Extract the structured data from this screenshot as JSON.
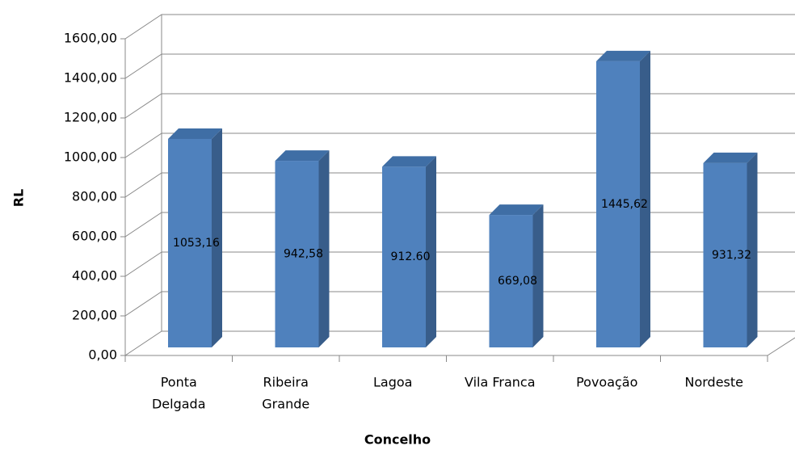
{
  "chart_data": {
    "type": "bar3d",
    "x_label": "Concelho",
    "y_label": "RL",
    "categories": [
      [
        "Ponta",
        "Delgada"
      ],
      [
        "Ribeira",
        "Grande"
      ],
      [
        "Lagoa"
      ],
      [
        "Vila Franca"
      ],
      [
        "Povoação"
      ],
      [
        "Nordeste"
      ]
    ],
    "values": [
      1053.16,
      942.58,
      912.6,
      669.08,
      1445.62,
      931.32
    ],
    "value_labels": [
      "1053,16",
      "942,58",
      "912.60",
      "669,08",
      "1445,62",
      "931,32"
    ],
    "color": "#4f81bd",
    "ylim": [
      0,
      1600
    ],
    "yticks": [
      {
        "value": 0,
        "label": "0,00"
      },
      {
        "value": 200,
        "label": "200,00"
      },
      {
        "value": 400,
        "label": "400,00"
      },
      {
        "value": 600,
        "label": "600,00"
      },
      {
        "value": 800,
        "label": "800,00"
      },
      {
        "value": 1000,
        "label": "1000,00"
      },
      {
        "value": 1200,
        "label": "1200,00"
      },
      {
        "value": 1400,
        "label": "1400,00"
      },
      {
        "value": 1600,
        "label": "1600,00"
      }
    ],
    "grid": true
  }
}
